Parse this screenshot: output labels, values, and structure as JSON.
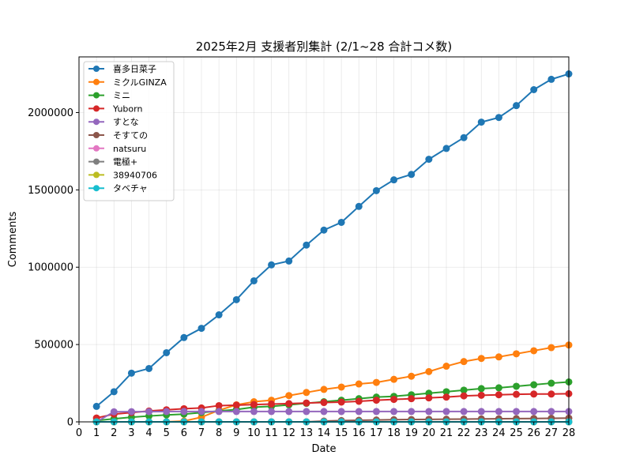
{
  "chart_data": {
    "type": "line",
    "title": "2025年2月 支援者別集計 (2/1~28 合計コメ数)",
    "xlabel": "Date",
    "ylabel": "Comments",
    "xlim": [
      0,
      28
    ],
    "ylim": [
      0,
      2360000
    ],
    "xticks": [
      0,
      1,
      2,
      3,
      4,
      5,
      6,
      7,
      8,
      9,
      10,
      11,
      12,
      13,
      14,
      15,
      16,
      17,
      18,
      19,
      20,
      21,
      22,
      23,
      24,
      25,
      26,
      27,
      28
    ],
    "yticks": [
      0,
      500000,
      1000000,
      1500000,
      2000000
    ],
    "grid": true,
    "legend_position": "top-left",
    "x": [
      1,
      2,
      3,
      4,
      5,
      6,
      7,
      8,
      9,
      10,
      11,
      12,
      13,
      14,
      15,
      16,
      17,
      18,
      19,
      20,
      21,
      22,
      23,
      24,
      25,
      26,
      27,
      28
    ],
    "series": [
      {
        "name": "喜多日菜子",
        "color": "#1f77b4",
        "values": [
          100000,
          195000,
          315000,
          345000,
          447000,
          545000,
          605000,
          692000,
          790000,
          912000,
          1015000,
          1040000,
          1143000,
          1240000,
          1290000,
          1393000,
          1495000,
          1565000,
          1600000,
          1698000,
          1768000,
          1838000,
          1938000,
          1968000,
          2045000,
          2148000,
          2215000,
          2250000
        ]
      },
      {
        "name": "ミクルGINZA",
        "color": "#ff7f0e",
        "values": [
          0,
          0,
          0,
          0,
          0,
          5000,
          30000,
          75000,
          110000,
          130000,
          140000,
          170000,
          190000,
          210000,
          225000,
          245000,
          255000,
          275000,
          295000,
          325000,
          360000,
          390000,
          410000,
          420000,
          440000,
          460000,
          480000,
          497000
        ]
      },
      {
        "name": "ミニ",
        "color": "#2ca02c",
        "values": [
          8000,
          20000,
          30000,
          38000,
          45000,
          50000,
          60000,
          70000,
          80000,
          95000,
          100000,
          110000,
          120000,
          130000,
          140000,
          150000,
          160000,
          165000,
          175000,
          185000,
          195000,
          205000,
          215000,
          220000,
          230000,
          240000,
          250000,
          258000
        ]
      },
      {
        "name": "Yuborn",
        "color": "#d62728",
        "values": [
          25000,
          50000,
          60000,
          70000,
          78000,
          85000,
          90000,
          105000,
          108000,
          112000,
          115000,
          118000,
          122000,
          125000,
          128000,
          133000,
          140000,
          145000,
          150000,
          155000,
          160000,
          168000,
          172000,
          175000,
          178000,
          180000,
          180000,
          182000
        ]
      },
      {
        "name": "すとな",
        "color": "#9467bd",
        "values": [
          0,
          65000,
          66000,
          66000,
          67000,
          67000,
          67000,
          67000,
          67000,
          67000,
          67000,
          67000,
          67000,
          67000,
          67000,
          67000,
          67000,
          67000,
          67000,
          67000,
          67000,
          67000,
          67000,
          67000,
          67000,
          67000,
          67000,
          67000
        ]
      },
      {
        "name": "そすての",
        "color": "#8c564b",
        "values": [
          0,
          0,
          0,
          0,
          0,
          0,
          0,
          0,
          0,
          0,
          0,
          0,
          0,
          5000,
          8000,
          10000,
          12000,
          14000,
          15000,
          16000,
          17000,
          18000,
          19000,
          20000,
          21000,
          22000,
          23000,
          24000
        ]
      },
      {
        "name": "natsuru",
        "color": "#e377c2",
        "values": [
          0,
          0,
          0,
          0,
          0,
          0,
          0,
          0,
          0,
          0,
          0,
          0,
          0,
          0,
          0,
          0,
          0,
          0,
          0,
          0,
          0,
          0,
          0,
          0,
          0,
          0,
          0,
          0
        ]
      },
      {
        "name": "電極+",
        "color": "#7f7f7f",
        "values": [
          0,
          0,
          0,
          0,
          0,
          0,
          0,
          0,
          0,
          0,
          0,
          0,
          0,
          0,
          0,
          0,
          0,
          0,
          0,
          0,
          0,
          0,
          0,
          0,
          0,
          0,
          0,
          0
        ]
      },
      {
        "name": "38940706",
        "color": "#bcbd22",
        "values": [
          0,
          0,
          0,
          0,
          0,
          0,
          0,
          0,
          0,
          0,
          0,
          0,
          0,
          0,
          0,
          0,
          0,
          0,
          0,
          0,
          0,
          0,
          0,
          0,
          0,
          0,
          0,
          0
        ]
      },
      {
        "name": "タベチャ",
        "color": "#17becf",
        "values": [
          0,
          0,
          0,
          0,
          0,
          0,
          0,
          0,
          0,
          0,
          0,
          0,
          0,
          0,
          0,
          0,
          0,
          0,
          0,
          0,
          0,
          0,
          0,
          0,
          0,
          0,
          0,
          0
        ]
      }
    ]
  }
}
